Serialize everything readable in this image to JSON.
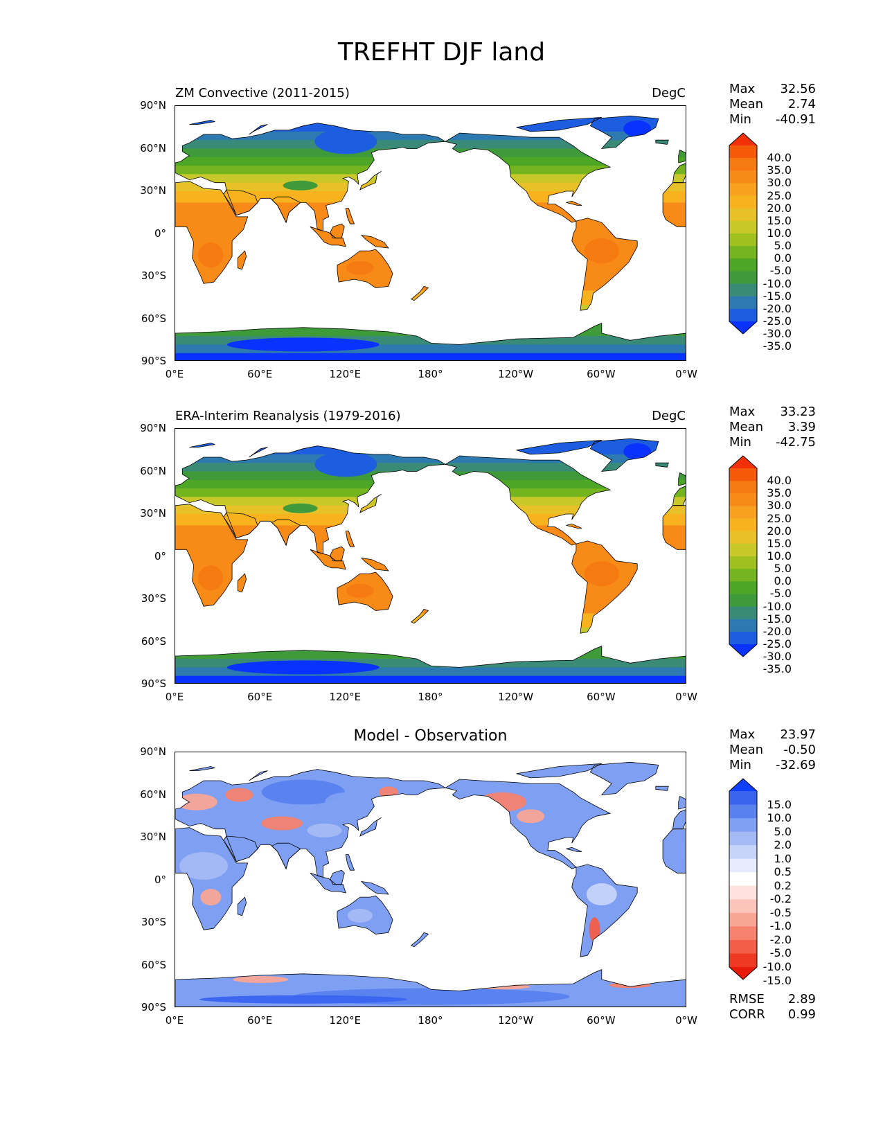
{
  "figure_title": "TREFHT DJF land",
  "lat_ticks": [
    "90°N",
    "60°N",
    "30°N",
    "0°",
    "30°S",
    "60°S",
    "90°S"
  ],
  "lon_ticks": [
    "0°E",
    "60°E",
    "120°E",
    "180°",
    "120°W",
    "60°W",
    "0°W"
  ],
  "panels": [
    {
      "left_title": "ZM Convective (2011-2015)",
      "right_title": "DegC",
      "center_title": "",
      "stats": [
        {
          "label": "Max",
          "value": "32.56"
        },
        {
          "label": "Mean",
          "value": "2.74"
        },
        {
          "label": "Min",
          "value": "-40.91"
        }
      ],
      "colorbar_labels": [
        "40.0",
        "35.0",
        "30.0",
        "25.0",
        "20.0",
        "15.0",
        "10.0",
        "5.0",
        "0.0",
        "-5.0",
        "-10.0",
        "-15.0",
        "-20.0",
        "-25.0",
        "-30.0",
        "-35.0"
      ],
      "extra_stats": []
    },
    {
      "left_title": "ERA-Interim Reanalysis (1979-2016)",
      "right_title": "DegC",
      "center_title": "",
      "stats": [
        {
          "label": "Max",
          "value": "33.23"
        },
        {
          "label": "Mean",
          "value": "3.39"
        },
        {
          "label": "Min",
          "value": "-42.75"
        }
      ],
      "colorbar_labels": [
        "40.0",
        "35.0",
        "30.0",
        "25.0",
        "20.0",
        "15.0",
        "10.0",
        "5.0",
        "0.0",
        "-5.0",
        "-10.0",
        "-15.0",
        "-20.0",
        "-25.0",
        "-30.0",
        "-35.0"
      ],
      "extra_stats": []
    },
    {
      "left_title": "",
      "right_title": "",
      "center_title": "Model - Observation",
      "stats": [
        {
          "label": "Max",
          "value": "23.97"
        },
        {
          "label": "Mean",
          "value": "-0.50"
        },
        {
          "label": "Min",
          "value": "-32.69"
        }
      ],
      "colorbar_labels": [
        "15.0",
        "10.0",
        "5.0",
        "2.0",
        "1.0",
        "0.5",
        "0.2",
        "-0.2",
        "-0.5",
        "-1.0",
        "-2.0",
        "-5.0",
        "-10.0",
        "-15.0"
      ],
      "extra_stats": [
        {
          "label": "RMSE",
          "value": "2.89"
        },
        {
          "label": "CORR",
          "value": "0.99"
        }
      ]
    }
  ],
  "colors": {
    "temp_scale": [
      "#0a32ff",
      "#1d5ee0",
      "#2c7ab0",
      "#3a8a78",
      "#3f9a3a",
      "#4ea626",
      "#73b41f",
      "#a0c020",
      "#c8c82a",
      "#e8c028",
      "#f7b21e",
      "#f8a020",
      "#f88a18",
      "#f67a12",
      "#f45a0a",
      "#f23008"
    ],
    "diff_scale": [
      "#1040ff",
      "#3a64f0",
      "#5a82ee",
      "#7fa0f2",
      "#a4baf6",
      "#c6d4fa",
      "#e6ecfe",
      "#ffffff",
      "#fde2de",
      "#fcc5bb",
      "#f9a595",
      "#f6826e",
      "#f25e48",
      "#ee3a22",
      "#e81a0a"
    ]
  }
}
